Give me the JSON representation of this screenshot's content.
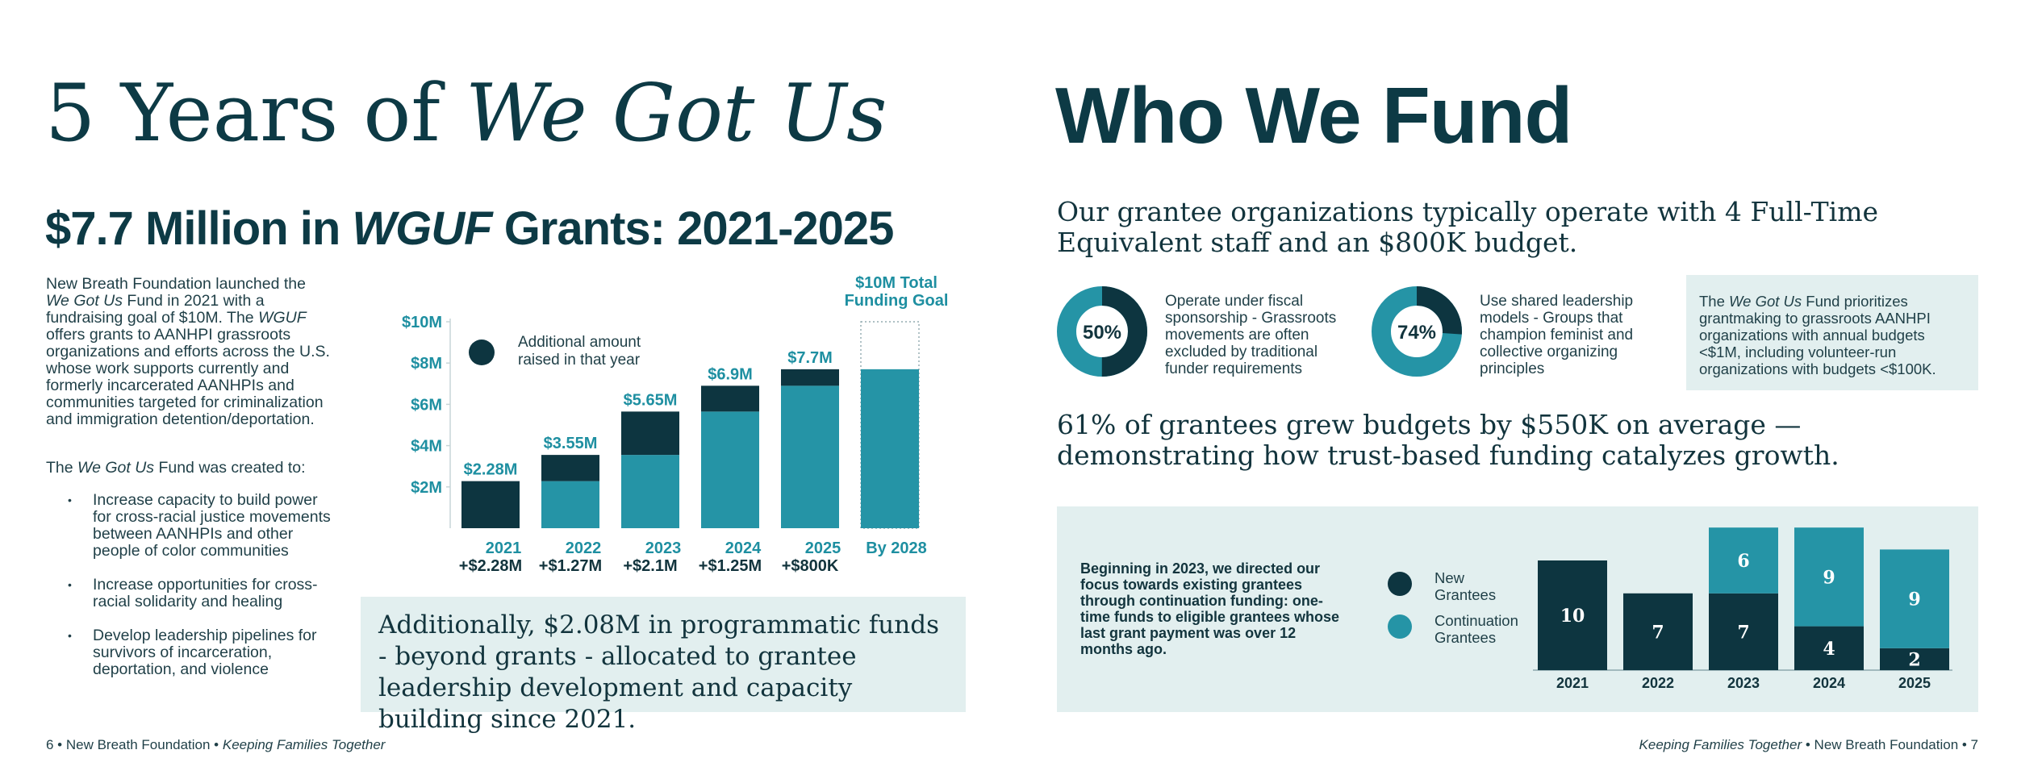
{
  "left": {
    "title_plain": "5 Years of ",
    "title_italic": "We Got Us",
    "subtitle_pre": "$7.7 Million in ",
    "subtitle_italic": "WGUF",
    "subtitle_post": " Grants: 2021-2025",
    "intro": {
      "p1": "New Breath Foundation launched the ",
      "p2": "We Got Us",
      "p3": " Fund in 2021 with a fundraising goal of $10M. The ",
      "p4": "WGUF",
      "p5": " offers grants to AANHPI grassroots organizations and efforts across the U.S. whose work supports currently and formerly incarcerated AANHPIs and communities targeted for criminalization and immigration detention/deportation."
    },
    "created_pre": "The ",
    "created_italic": "We Got Us",
    "created_post": " Fund was created to:",
    "bullets": [
      "Increase capacity to build power for cross-racial justice movements between AANHPIs and other people of color communities",
      "Increase opportunities for cross-racial solidarity and healing",
      "Develop leadership pipelines for survivors of incarceration, deportation, and violence"
    ],
    "callout": "Additionally, $2.08M in programmatic funds - beyond grants - allocated to grantee leadership development and capacity building since 2021.",
    "footer_pre": "6 • New Breath Foundation • ",
    "footer_italic": "Keeping Families Together"
  },
  "right": {
    "title": "Who We Fund",
    "lead1": "Our grantee organizations typically operate with 4 Full-Time Equivalent staff and an $800K budget.",
    "donut1": {
      "percent": 50,
      "label": "50%",
      "text": "Operate under fiscal sponsorship - Grassroots movements are often excluded by traditional funder requirements"
    },
    "donut2": {
      "percent": 74,
      "label": "74%",
      "text": "Use shared leadership models - Groups that champion feminist and collective organizing principles"
    },
    "callout_pre": "The ",
    "callout_italic": "We Got Us",
    "callout_post": " Fund prioritizes grantmaking to grassroots AANHPI organizations with annual budgets <$1M, including volunteer-run organizations with budgets <$100K.",
    "lead2": "61% of grantees grew budgets by $550K on average — demonstrating how trust-based funding catalyzes growth.",
    "continuation_note": "Beginning in 2023, we directed our focus towards existing grantees through continuation funding: one-time funds to eligible grantees whose last grant payment was over 12 months ago.",
    "footer_italic": "Keeping Families Together",
    "footer_post": " • New Breath Foundation • 7"
  },
  "colors": {
    "dark": "#0d3540",
    "teal": "#2594a6",
    "light_bg": "#e2efef",
    "label_teal": "#1e8fa1"
  },
  "chart_data": [
    {
      "type": "bar",
      "stacked": true,
      "categories": [
        "2021",
        "2022",
        "2023",
        "2024",
        "2025",
        "By 2028"
      ],
      "cumulative_labels": [
        "$2.28M",
        "$3.55M",
        "$5.65M",
        "$6.9M",
        "$7.7M",
        "$10M Total Funding Goal"
      ],
      "increment_labels": [
        "+$2.28M",
        "+$1.27M",
        "+$2.1M",
        "+$1.25M",
        "+$800K",
        ""
      ],
      "series": [
        {
          "name": "",
          "values": [
            0,
            2.28,
            3.55,
            5.65,
            6.9,
            7.7
          ]
        },
        {
          "name": "Additional amount raised in that year",
          "values": [
            2.28,
            1.27,
            2.1,
            1.25,
            0.8,
            0
          ]
        }
      ],
      "goal": 10,
      "y_ticks": [
        "$2M",
        "$4M",
        "$6M",
        "$8M",
        "$10M"
      ],
      "ylim": [
        0,
        10
      ],
      "legend": "top-left"
    },
    {
      "type": "bar",
      "stacked": true,
      "categories": [
        "2021",
        "2022",
        "2023",
        "2024",
        "2025"
      ],
      "series": [
        {
          "name": "New Grantees",
          "values": [
            10,
            7,
            7,
            4,
            2
          ]
        },
        {
          "name": "Continuation Grantees",
          "values": [
            0,
            0,
            6,
            9,
            9
          ]
        }
      ],
      "ylim": [
        0,
        13
      ],
      "legend": "left"
    }
  ]
}
